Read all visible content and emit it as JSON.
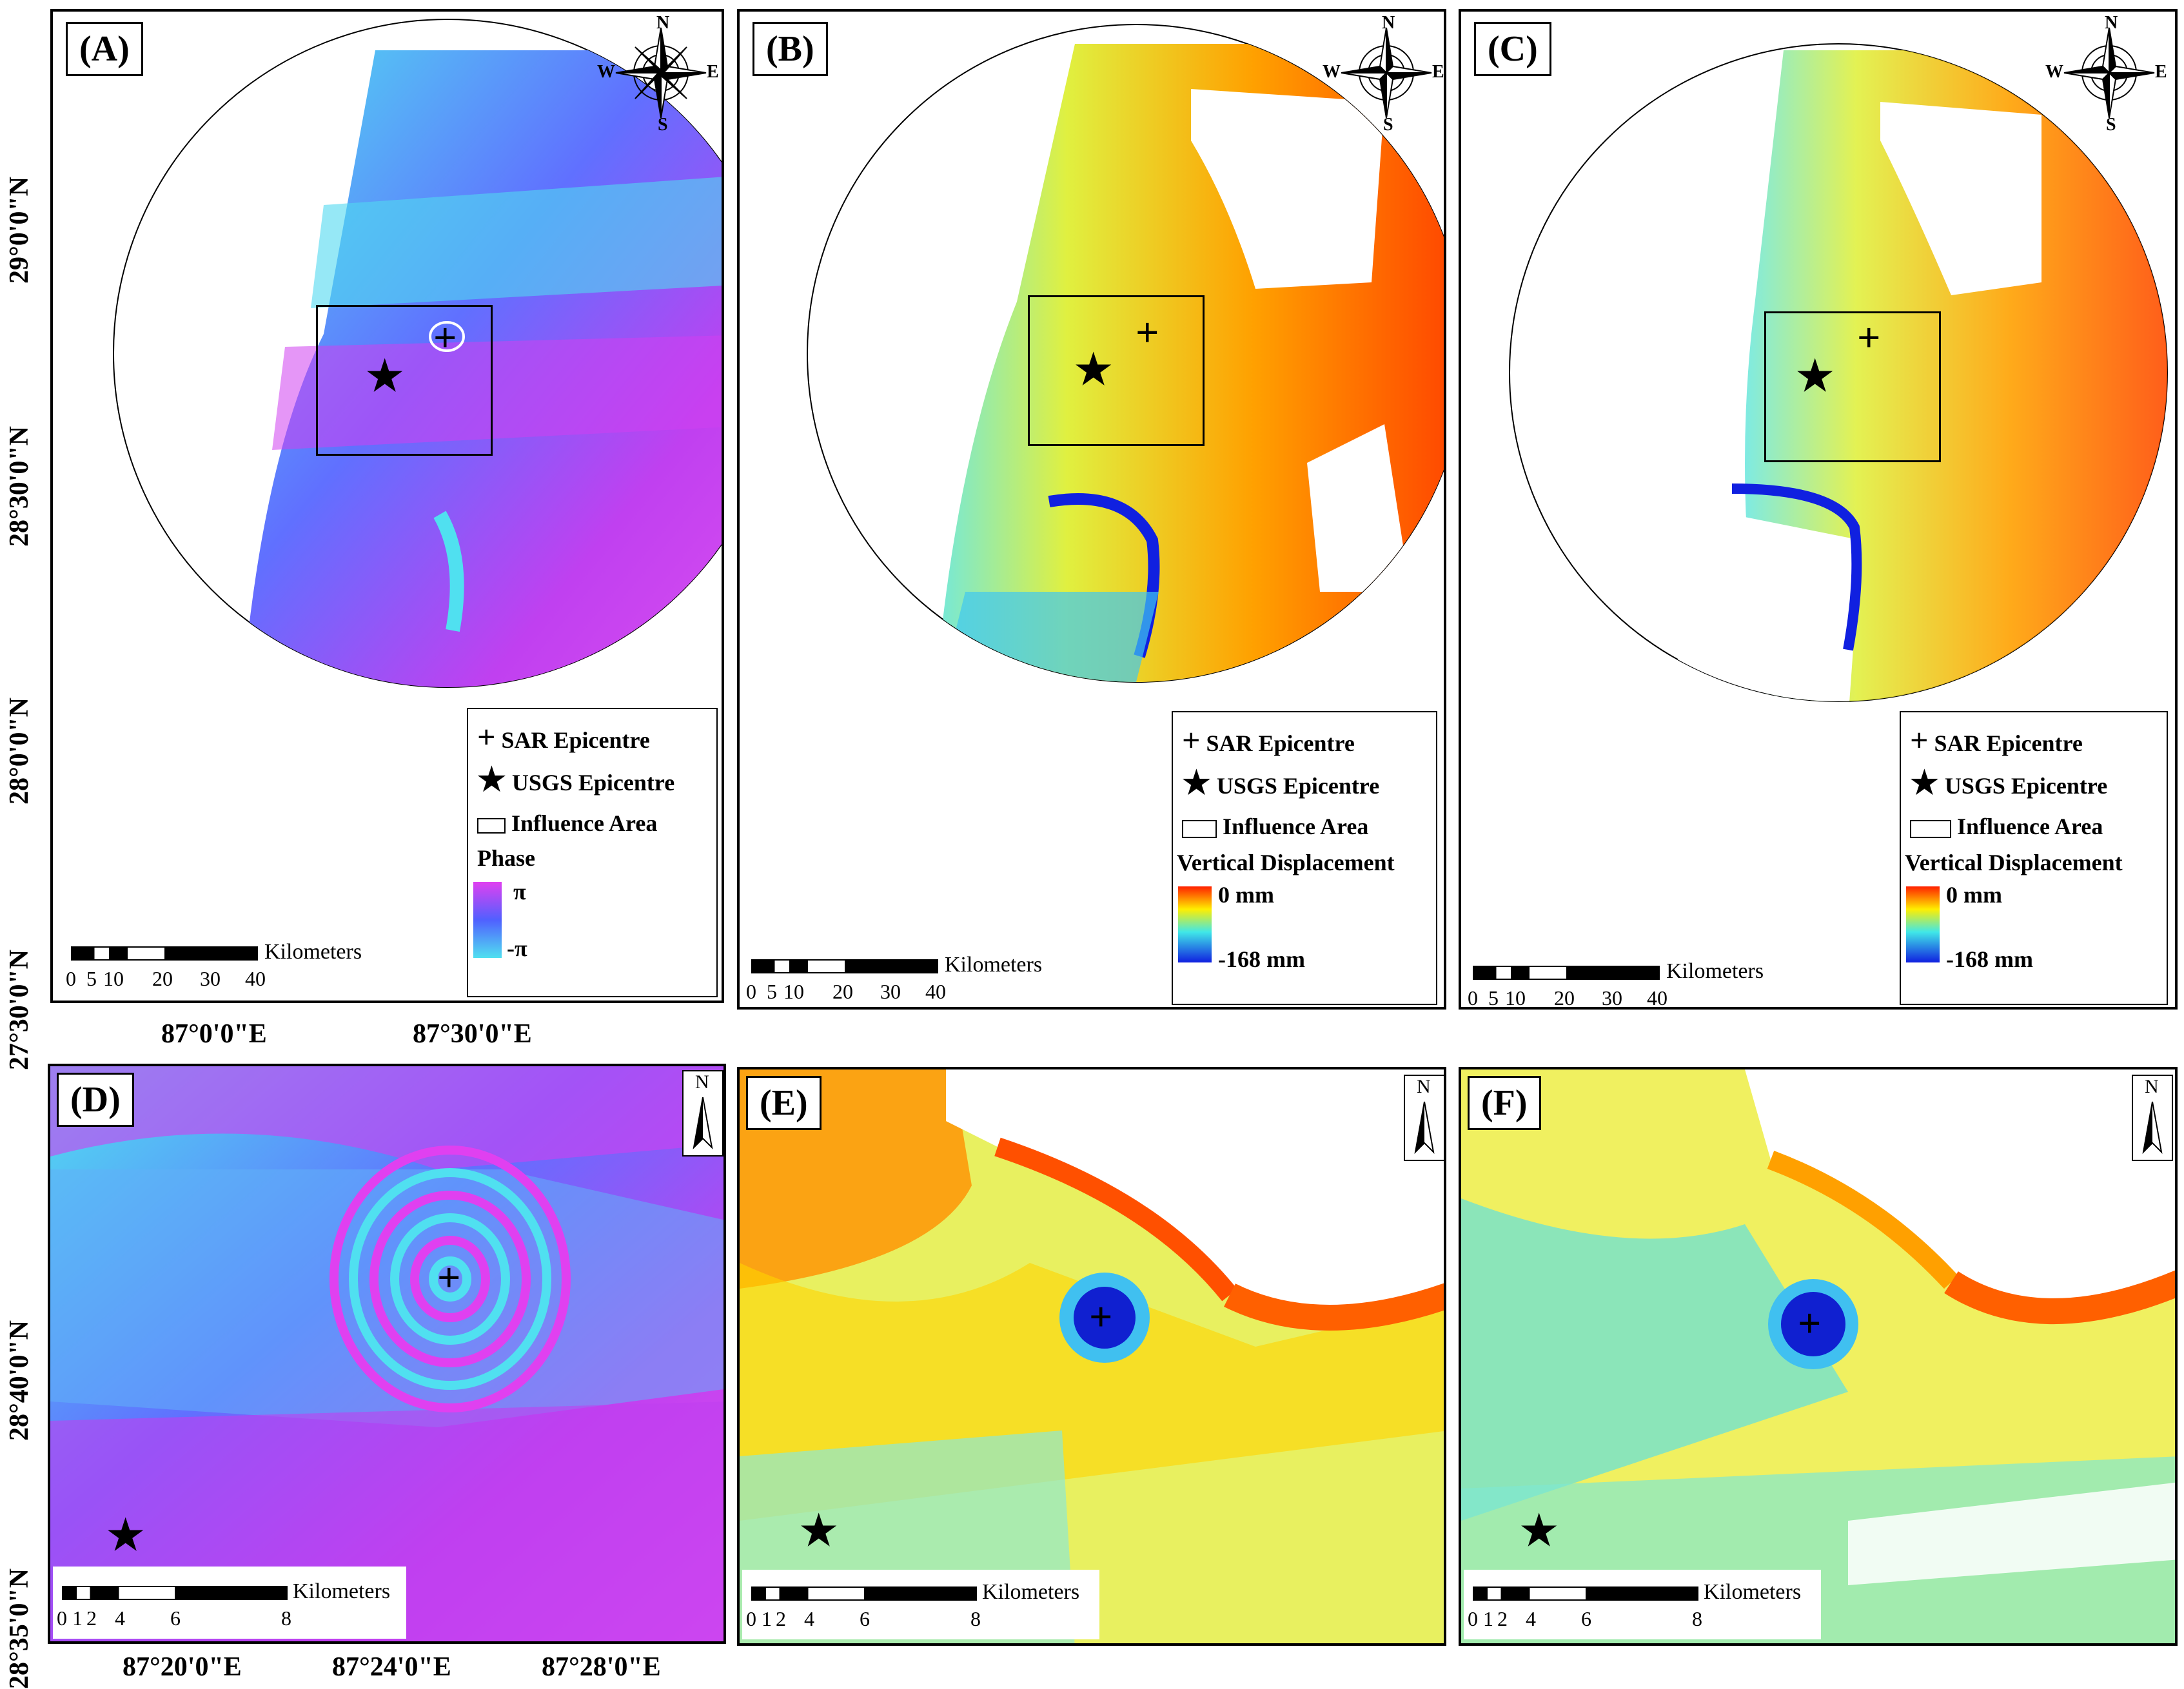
{
  "panels": {
    "a": {
      "label": "(A)"
    },
    "b": {
      "label": "(B)"
    },
    "c": {
      "label": "(C)"
    },
    "d": {
      "label": "(D)"
    },
    "e": {
      "label": "(E)"
    },
    "f": {
      "label": "(F)"
    }
  },
  "compass": {
    "n": "N",
    "s": "S",
    "e": "E",
    "w": "W"
  },
  "north_arrow": "N",
  "legend": {
    "sar": "SAR Epicentre",
    "usgs": "USGS Epicentre",
    "influence": "Influence Area",
    "phase_title": "Phase",
    "phase_max": "π",
    "phase_min": "-π",
    "vd_title": "Vertical Displacement",
    "vd_max": "0 mm",
    "vd_min": "-168 mm"
  },
  "scalebar_top": {
    "title": "Kilometers",
    "ticks": [
      "0",
      "5",
      "10",
      "20",
      "30",
      "40"
    ]
  },
  "scalebar_bottom": {
    "title": "Kilometers",
    "ticks": [
      "0",
      "1",
      "2",
      "4",
      "6",
      "8"
    ]
  },
  "axes": {
    "top_lat": [
      "29°0'0\"N",
      "28°30'0\"N",
      "28°0'0\"N",
      "27°30'0\"N"
    ],
    "top_lon": [
      "87°0'0\"E",
      "87°30'0\"E"
    ],
    "bottom_lat": [
      "28°40'0\"N",
      "28°35'0\"N"
    ],
    "bottom_lon": [
      "87°20'0\"E",
      "87°24'0\"E",
      "87°28'0\"E"
    ]
  },
  "colors": {
    "phase_pink": "#e040f0",
    "phase_blue": "#5060ff",
    "phase_cyan": "#50e0f0",
    "vd_red": "#ff3000",
    "vd_yellow": "#ffee00",
    "vd_cyan": "#40e8e8",
    "vd_blue": "#1020e0"
  }
}
